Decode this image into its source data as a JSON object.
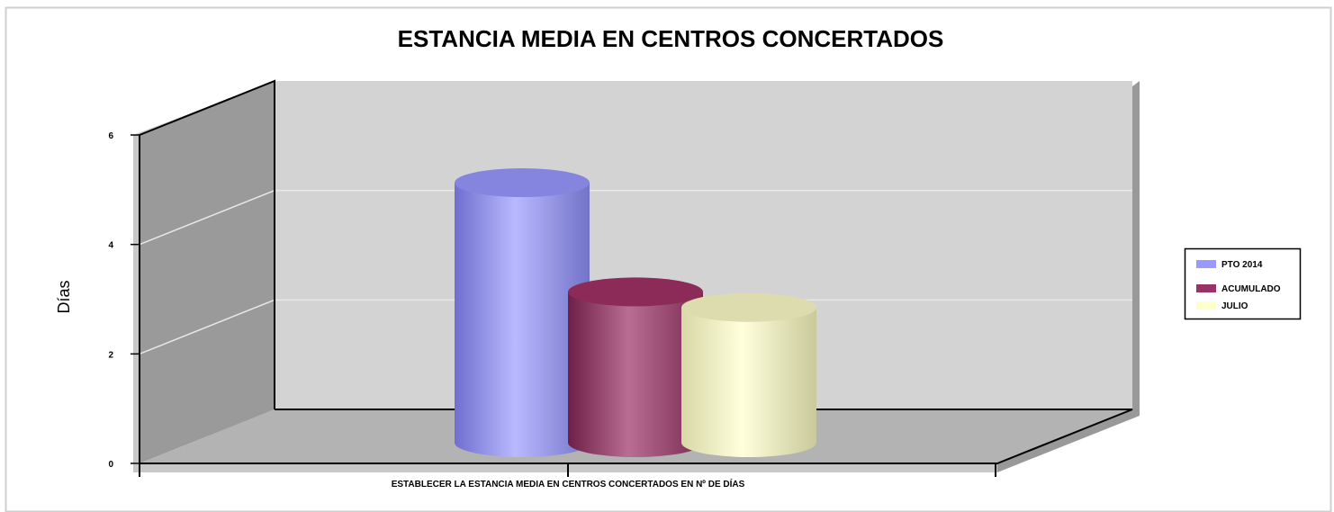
{
  "chart_data": {
    "type": "bar",
    "title": "ESTANCIA MEDIA EN CENTROS CONCERTADOS",
    "ylabel": "Días",
    "categories": [
      "ESTABLECER LA ESTANCIA MEDIA EN CENTROS CONCERTADOS EN Nº DE DÍAS"
    ],
    "series": [
      {
        "name": "PTO 2014",
        "values": [
          5
        ],
        "color": "#9999ff"
      },
      {
        "name": "ACUMULADO",
        "values": [
          2.9
        ],
        "color": "#993366"
      },
      {
        "name": "JULIO",
        "values": [
          2.6
        ],
        "color": "#ffffcc"
      }
    ],
    "ylim": [
      0,
      6
    ],
    "yticks": [
      "0",
      "2",
      "4",
      "6"
    ],
    "grid": true,
    "legend": "right",
    "bar_shape": "cylinder",
    "render": "3d"
  }
}
